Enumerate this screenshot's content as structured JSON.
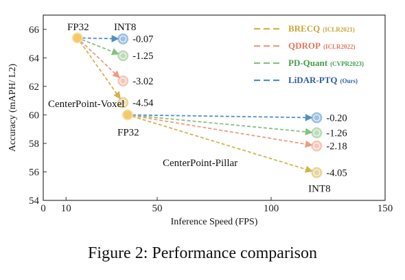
{
  "caption": "Figure 2: Performance comparison",
  "chart_data": {
    "type": "scatter",
    "title": "",
    "xlabel": "Inference Speed (FPS)",
    "ylabel": "Accuracy  (mAPH/ L2)",
    "xlim": [
      0,
      150
    ],
    "ylim": [
      54,
      67
    ],
    "xticks": [
      {
        "value": 0,
        "label": "0"
      },
      {
        "value": 10,
        "label": "10"
      },
      {
        "value": 50,
        "label": "50"
      },
      {
        "value": 100,
        "label": "100"
      },
      {
        "value": 150,
        "label": "150"
      }
    ],
    "yticks": [
      54,
      56,
      58,
      60,
      62,
      64,
      66
    ],
    "grid": false,
    "legend_position": "top-right",
    "colors": {
      "fp32_point": "#f3c96a",
      "BRECQ": "#d4b24a",
      "QDROP": "#ee9a80",
      "PD-Quant": "#86c07e",
      "LiDAR-PTQ": "#4f8fc6"
    },
    "legend": [
      {
        "name": "BRECQ",
        "venue": "(ICLR2021)",
        "color": "#c9a43a",
        "line": "#d4b24a"
      },
      {
        "name": "QDROP",
        "venue": "(ICLR2022)",
        "color": "#e4745a",
        "line": "#ee9a80"
      },
      {
        "name": "PD-Quant",
        "venue": "(CVPR2023)",
        "color": "#3f9e48",
        "line": "#86c07e"
      },
      {
        "name": "LiDAR-PTQ",
        "venue": "(Ours)",
        "color": "#2f5f9f",
        "line": "#4f8fc6"
      }
    ],
    "models": [
      {
        "name": "CenterPoint-Voxel",
        "fp32": {
          "x": 15,
          "y": 65.4,
          "label": "FP32"
        },
        "int8_label": "INT8",
        "int8_x": 35,
        "points": [
          {
            "method": "LiDAR-PTQ",
            "y": 65.33,
            "delta": "-0.07"
          },
          {
            "method": "PD-Quant",
            "y": 64.15,
            "delta": "-1.25"
          },
          {
            "method": "QDROP",
            "y": 62.38,
            "delta": "-3.02"
          },
          {
            "method": "BRECQ",
            "y": 60.86,
            "delta": "-4.54"
          }
        ]
      },
      {
        "name": "CenterPoint-Pillar",
        "fp32": {
          "x": 37,
          "y": 60.0,
          "label": "FP32"
        },
        "int8_label": "INT8",
        "int8_x": 120,
        "points": [
          {
            "method": "LiDAR-PTQ",
            "y": 59.8,
            "delta": "-0.20"
          },
          {
            "method": "PD-Quant",
            "y": 58.74,
            "delta": "-1.26"
          },
          {
            "method": "QDROP",
            "y": 57.82,
            "delta": "-2.18"
          },
          {
            "method": "BRECQ",
            "y": 55.95,
            "delta": "-4.05"
          }
        ]
      }
    ]
  }
}
